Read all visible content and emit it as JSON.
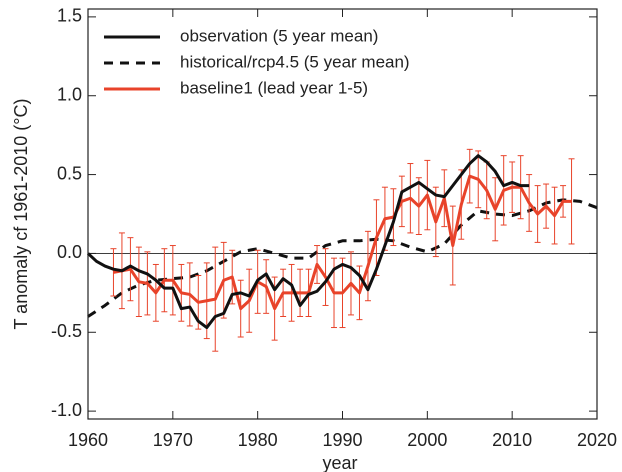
{
  "chart_data": {
    "type": "line",
    "x_label": "year",
    "y_label": "T anomaly cf 1961-2010 (°C)",
    "xlim": [
      1960,
      2020
    ],
    "xticks": [
      1960,
      1970,
      1980,
      1990,
      2000,
      2010,
      2020
    ],
    "ylim": [
      -1.05,
      1.55
    ],
    "yticks": [
      {
        "value": 1.5,
        "label": "1.5"
      },
      {
        "value": 1.0,
        "label": "1.0"
      },
      {
        "value": 0.5,
        "label": "0.5"
      },
      {
        "value": 0,
        "label": "0.0"
      },
      {
        "value": -0.5,
        "label": "-0.5"
      },
      {
        "value": -1.0,
        "label": "-1.0"
      }
    ],
    "hline": 0,
    "legend": "upper left",
    "series": [
      {
        "name": "observation (5 year mean)",
        "color": "#111111",
        "style": "solid",
        "x": [
          1960,
          1961,
          1962,
          1963,
          1964,
          1965,
          1966,
          1967,
          1968,
          1969,
          1970,
          1971,
          1972,
          1973,
          1974,
          1975,
          1976,
          1977,
          1978,
          1979,
          1980,
          1981,
          1982,
          1983,
          1984,
          1985,
          1986,
          1987,
          1988,
          1989,
          1990,
          1991,
          1992,
          1993,
          1994,
          1995,
          1996,
          1997,
          1998,
          1999,
          2000,
          2001,
          2002,
          2003,
          2004,
          2005,
          2006,
          2007,
          2008,
          2009,
          2010,
          2011,
          2012
        ],
        "values": [
          0.0,
          -0.05,
          -0.08,
          -0.1,
          -0.11,
          -0.08,
          -0.11,
          -0.13,
          -0.17,
          -0.22,
          -0.22,
          -0.35,
          -0.34,
          -0.43,
          -0.47,
          -0.4,
          -0.38,
          -0.26,
          -0.25,
          -0.27,
          -0.17,
          -0.13,
          -0.23,
          -0.16,
          -0.2,
          -0.33,
          -0.26,
          -0.24,
          -0.18,
          -0.1,
          -0.07,
          -0.09,
          -0.14,
          -0.23,
          -0.1,
          0.05,
          0.2,
          0.39,
          0.42,
          0.45,
          0.41,
          0.37,
          0.36,
          0.43,
          0.5,
          0.57,
          0.62,
          0.58,
          0.52,
          0.43,
          0.45,
          0.43,
          0.43
        ]
      },
      {
        "name": "historical/rcp4.5 (5 year mean)",
        "color": "#111111",
        "style": "dashed",
        "x": [
          1960,
          1962,
          1964,
          1966,
          1968,
          1970,
          1972,
          1974,
          1976,
          1978,
          1980,
          1982,
          1984,
          1986,
          1988,
          1990,
          1992,
          1994,
          1996,
          1998,
          2000,
          2002,
          2004,
          2006,
          2008,
          2010,
          2012,
          2014,
          2016,
          2018,
          2020
        ],
        "values": [
          -0.4,
          -0.33,
          -0.25,
          -0.2,
          -0.17,
          -0.16,
          -0.15,
          -0.11,
          -0.05,
          0.01,
          0.03,
          0.0,
          -0.03,
          -0.03,
          0.05,
          0.08,
          0.08,
          0.09,
          0.08,
          0.04,
          0.01,
          0.06,
          0.18,
          0.27,
          0.25,
          0.24,
          0.27,
          0.32,
          0.34,
          0.33,
          0.29
        ]
      },
      {
        "name": "baseline1 (lead year 1-5)",
        "color": "#e8432a",
        "style": "solid",
        "x": [
          1963,
          1964,
          1965,
          1966,
          1967,
          1968,
          1969,
          1970,
          1971,
          1972,
          1973,
          1974,
          1975,
          1976,
          1977,
          1978,
          1979,
          1980,
          1981,
          1982,
          1983,
          1984,
          1985,
          1986,
          1987,
          1988,
          1989,
          1990,
          1991,
          1992,
          1993,
          1994,
          1995,
          1996,
          1997,
          1998,
          1999,
          2000,
          2001,
          2002,
          2003,
          2004,
          2005,
          2006,
          2007,
          2008,
          2009,
          2010,
          2011,
          2012,
          2013,
          2014,
          2015,
          2016,
          2017
        ],
        "values": [
          -0.12,
          -0.11,
          -0.1,
          -0.18,
          -0.19,
          -0.25,
          -0.17,
          -0.17,
          -0.25,
          -0.26,
          -0.31,
          -0.3,
          -0.29,
          -0.17,
          -0.15,
          -0.35,
          -0.3,
          -0.18,
          -0.21,
          -0.35,
          -0.25,
          -0.25,
          -0.25,
          -0.25,
          -0.07,
          -0.15,
          -0.25,
          -0.25,
          -0.19,
          -0.25,
          -0.08,
          0.1,
          0.22,
          0.23,
          0.33,
          0.35,
          0.3,
          0.37,
          0.2,
          0.35,
          0.05,
          0.31,
          0.49,
          0.47,
          0.4,
          0.28,
          0.4,
          0.42,
          0.42,
          0.32,
          0.25,
          0.3,
          0.24,
          0.33,
          0.33
        ],
        "errors": [
          0.15,
          0.24,
          0.2,
          0.22,
          0.2,
          0.18,
          0.2,
          0.22,
          0.18,
          0.2,
          0.17,
          0.24,
          0.33,
          0.24,
          0.17,
          0.18,
          0.2,
          0.2,
          0.17,
          0.2,
          0.15,
          0.18,
          0.15,
          0.15,
          0.12,
          0.18,
          0.22,
          0.22,
          0.2,
          0.17,
          0.22,
          0.24,
          0.2,
          0.18,
          0.16,
          0.22,
          0.18,
          0.22,
          0.22,
          0.18,
          0.25,
          0.22,
          0.17,
          0.18,
          0.18,
          0.2,
          0.22,
          0.16,
          0.2,
          0.18,
          0.18,
          0.14,
          0.18,
          0.1,
          0.27
        ]
      }
    ]
  }
}
